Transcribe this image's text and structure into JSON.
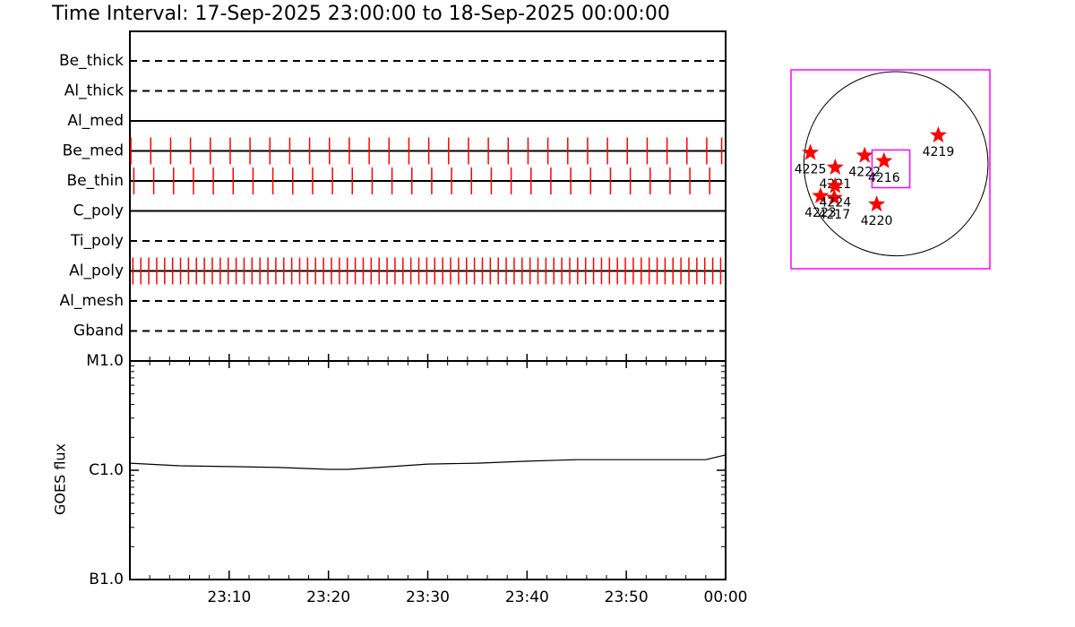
{
  "title": "Time Interval: 17-Sep-2025 23:00:00 to 18-Sep-2025 00:00:00",
  "chart_data": [
    {
      "type": "timeline",
      "color": "#ff0000",
      "xlim": [
        0,
        60
      ],
      "rows": [
        {
          "label": "Be_thick",
          "style": "dashed",
          "times": []
        },
        {
          "label": "Al_thick",
          "style": "dashed",
          "times": []
        },
        {
          "label": "Al_med",
          "style": "solid",
          "times": []
        },
        {
          "label": "Be_med",
          "style": "solid",
          "times": [
            0.1,
            2.1,
            4.1,
            6.1,
            8.1,
            10.1,
            12.1,
            14.1,
            16.1,
            18.1,
            20.1,
            22.1,
            24.1,
            26.1,
            28.1,
            30.1,
            32.1,
            34.1,
            36.1,
            38.1,
            40.1,
            42.1,
            44.1,
            46.1,
            48.1,
            50.1,
            52.1,
            54.1,
            56.1,
            58.1,
            59.6
          ]
        },
        {
          "label": "Be_thin",
          "style": "solid",
          "times": [
            0.4,
            2.4,
            4.4,
            6.4,
            8.4,
            10.4,
            12.4,
            14.4,
            16.4,
            18.4,
            20.4,
            22.4,
            24.4,
            26.4,
            28.4,
            30.4,
            32.4,
            34.4,
            36.4,
            38.4,
            40.4,
            42.4,
            44.4,
            46.4,
            48.4,
            50.4,
            52.4,
            54.4,
            56.4,
            58.4
          ]
        },
        {
          "label": "C_poly",
          "style": "solid",
          "times": []
        },
        {
          "label": "Ti_poly",
          "style": "dashed",
          "times": []
        },
        {
          "label": "Al_poly",
          "style": "solid",
          "times": [
            0.3,
            1.1,
            1.9,
            2.7,
            3.5,
            4.3,
            5.1,
            5.9,
            6.7,
            7.5,
            8.3,
            9.1,
            9.9,
            10.7,
            11.5,
            12.3,
            13.1,
            13.9,
            14.7,
            15.5,
            16.3,
            17.1,
            17.9,
            18.7,
            19.5,
            20.3,
            21.1,
            21.9,
            22.7,
            23.5,
            24.3,
            25.1,
            25.9,
            26.7,
            27.5,
            28.3,
            29.1,
            29.9,
            30.7,
            31.5,
            32.3,
            33.1,
            33.9,
            34.7,
            35.5,
            36.3,
            37.1,
            37.9,
            38.7,
            39.5,
            40.3,
            41.1,
            41.9,
            42.7,
            43.5,
            44.3,
            45.1,
            45.9,
            46.7,
            47.5,
            48.3,
            49.1,
            49.9,
            50.7,
            51.5,
            52.3,
            53.1,
            53.9,
            54.7,
            55.5,
            56.3,
            57.1,
            57.9,
            58.7,
            59.5
          ]
        },
        {
          "label": "Al_mesh",
          "style": "dashed",
          "times": []
        },
        {
          "label": "Gband",
          "style": "dashed",
          "times": []
        }
      ]
    },
    {
      "type": "line",
      "ylabel": "GOES flux",
      "log_scale": true,
      "color": "#000000",
      "x": [
        0,
        5,
        10,
        15,
        20,
        22,
        25,
        30,
        35,
        40,
        45,
        50,
        55,
        58,
        60
      ],
      "values": [
        1.16e-06,
        1.1e-06,
        1.08e-06,
        1.06e-06,
        1.02e-06,
        1.02e-06,
        1.06e-06,
        1.14e-06,
        1.16e-06,
        1.21e-06,
        1.25e-06,
        1.25e-06,
        1.25e-06,
        1.25e-06,
        1.38e-06
      ],
      "xlim": [
        0,
        60
      ],
      "xticks": [
        {
          "value": 10,
          "label": "23:10"
        },
        {
          "value": 20,
          "label": "23:20"
        },
        {
          "value": 30,
          "label": "23:30"
        },
        {
          "value": 40,
          "label": "23:40"
        },
        {
          "value": 50,
          "label": "23:50"
        },
        {
          "value": 60,
          "label": "00:00"
        }
      ],
      "ylim": [
        1e-07,
        1e-05
      ],
      "yticks": [
        {
          "value": 1e-07,
          "label": "B1.0"
        },
        {
          "value": 1e-06,
          "label": "C1.0"
        },
        {
          "value": 1e-05,
          "label": "M1.0"
        }
      ]
    },
    {
      "type": "scatter",
      "color": "#ff0000",
      "frame_color": "#ff00ff",
      "disk_radius": 1,
      "xlim": [
        -1.14,
        1.02
      ],
      "ylim": [
        -1.14,
        1.02
      ],
      "fov": {
        "x": [
          -0.26,
          0.15
        ],
        "y": [
          -0.26,
          0.15
        ]
      },
      "labels": [
        "4225",
        "4221",
        "4222",
        "4216",
        "4219",
        "4223",
        "4217",
        "4224",
        "4220"
      ],
      "x": [
        -0.93,
        -0.66,
        -0.34,
        -0.13,
        0.46,
        -0.82,
        -0.67,
        -0.66,
        -0.21
      ],
      "y": [
        0.12,
        -0.04,
        0.09,
        0.03,
        0.31,
        -0.35,
        -0.37,
        -0.24,
        -0.44
      ]
    }
  ]
}
